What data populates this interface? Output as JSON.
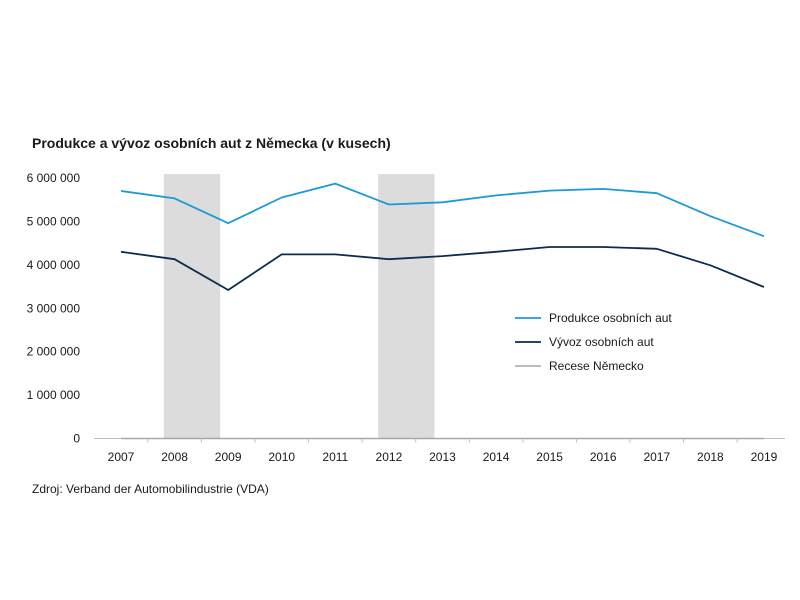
{
  "chart_data": {
    "type": "line",
    "title": "Produkce a vývoz osobních aut z Německa (v kusech)",
    "x": [
      "2007",
      "2008",
      "2009",
      "2010",
      "2011",
      "2012",
      "2013",
      "2014",
      "2015",
      "2016",
      "2017",
      "2018",
      "2019"
    ],
    "series": [
      {
        "name": "Produkce osobních aut",
        "color": "#1b9ad6",
        "values": [
          5700000,
          5530000,
          4960000,
          5550000,
          5870000,
          5390000,
          5440000,
          5600000,
          5710000,
          5750000,
          5650000,
          5120000,
          4660000
        ]
      },
      {
        "name": "Vývoz osobních aut",
        "color": "#0d2b4e",
        "values": [
          4300000,
          4130000,
          3420000,
          4240000,
          4240000,
          4130000,
          4200000,
          4300000,
          4410000,
          4410000,
          4370000,
          3990000,
          3490000
        ]
      }
    ],
    "recessions": [
      {
        "name": "Recese Německo",
        "color": "#dcdcdc",
        "from": "2008",
        "to": "2009"
      },
      {
        "from": "2012",
        "to": "2013"
      }
    ],
    "y_ticks": [
      {
        "value": 0,
        "label": "0"
      },
      {
        "value": 1000000,
        "label": "1 000 000"
      },
      {
        "value": 2000000,
        "label": "2 000 000"
      },
      {
        "value": 3000000,
        "label": "3 000 000"
      },
      {
        "value": 4000000,
        "label": "4 000 000"
      },
      {
        "value": 5000000,
        "label": "5 000 000"
      },
      {
        "value": 6000000,
        "label": "6 000 000"
      }
    ],
    "ylim": [
      0,
      6000000
    ],
    "grid": false,
    "legend_position": "right"
  },
  "source_note": "Zdroj: Verband der Automobilindustrie (VDA)"
}
